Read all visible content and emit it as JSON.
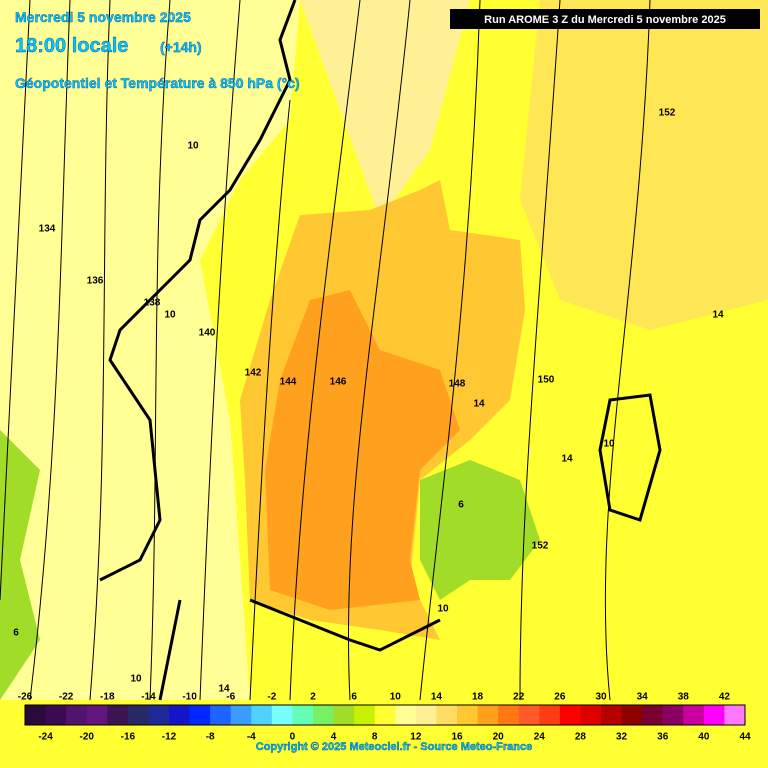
{
  "header": {
    "date": "Mercredi 5 novembre 2025",
    "time": "18:00 locale",
    "lead": "(+14h)",
    "field": "Géopotentiel et Température à 850 hPa (°c)",
    "run": "Run AROME 3 Z du Mercredi 5 novembre 2025"
  },
  "contour_labels": [
    10,
    134,
    136,
    138,
    10,
    140,
    142,
    144,
    146,
    148,
    150,
    152,
    14,
    14,
    10,
    14,
    6,
    152,
    10,
    6,
    10,
    14
  ],
  "colorbar": {
    "upper_labels": [
      -26,
      -22,
      -18,
      -14,
      -10,
      -6,
      -2,
      2,
      6,
      10,
      14,
      18,
      22,
      26,
      30,
      34,
      38,
      42
    ],
    "lower_labels": [
      -24,
      -20,
      -16,
      -12,
      -8,
      -4,
      0,
      4,
      8,
      12,
      16,
      20,
      24,
      28,
      32,
      36,
      40,
      44
    ],
    "colors": [
      "#2a0a3a",
      "#3c0a50",
      "#50146e",
      "#64147d",
      "#3c1450",
      "#282864",
      "#1e2896",
      "#1414c8",
      "#0028ff",
      "#1e64ff",
      "#3c9bff",
      "#50d2ff",
      "#78ffff",
      "#64ffb4",
      "#78f064",
      "#a0dc28",
      "#c8f000",
      "#ffff32",
      "#ffff96",
      "#fff096",
      "#ffdc64",
      "#ffc832",
      "#ffa01e",
      "#ff7814",
      "#ff5a28",
      "#ff3c14",
      "#ff0000",
      "#dc0000",
      "#b40000",
      "#8c0000",
      "#780032",
      "#8c0064",
      "#c800a0",
      "#ff00ff",
      "#ff78ff"
    ]
  },
  "footer": {
    "copyright": "Copyright © 2025 Meteociel.fr - Source Meteo-France"
  }
}
